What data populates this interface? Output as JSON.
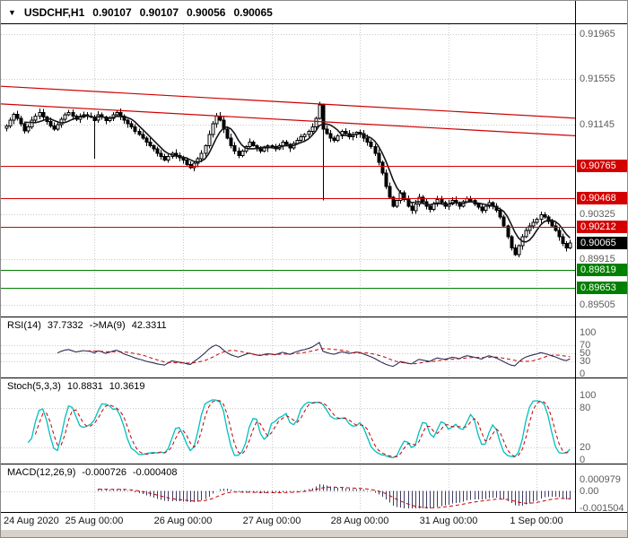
{
  "title": {
    "collapse_icon": "▼",
    "symbol": "USDCHF,H1",
    "open": "0.90107",
    "high": "0.90107",
    "low": "0.90056",
    "close": "0.90065"
  },
  "colors": {
    "resistance": "#d40000",
    "support": "#007f00",
    "current_badge": "#000000",
    "trendline": "#cc0000",
    "grid": "#c9c9c9",
    "candle": "#000000",
    "ma_line": "#14141c",
    "rsi_line": "#2b2b55",
    "rsi_signal": "#c40000",
    "stoch_line": "#00bfbf",
    "stoch_signal": "#c40000",
    "macd_hist": "#3c3c62",
    "macd_signal": "#c40000",
    "axis_text": "#5c5c5c",
    "panel_border": "#000000"
  },
  "chart_data": {
    "type": "candlestick",
    "symbol": "USDCHF",
    "timeframe": "H1",
    "title": "USDCHF,H1 0.90107 0.90107 0.90056 0.90065",
    "price_range": [
      0.89395,
      0.92055
    ],
    "y_axis_ticks": [
      {
        "v": 0.91965,
        "label": "0.91965"
      },
      {
        "v": 0.91555,
        "label": "0.91555"
      },
      {
        "v": 0.91145,
        "label": "0.91145"
      },
      {
        "v": 0.90325,
        "label": "0.90325"
      },
      {
        "v": 0.89915,
        "label": "0.89915"
      },
      {
        "v": 0.89505,
        "label": "0.89505"
      }
    ],
    "levels": {
      "resistance": [
        {
          "v": 0.90765,
          "label": "0.90765"
        },
        {
          "v": 0.90468,
          "label": "0.90468"
        },
        {
          "v": 0.90212,
          "label": "0.90212"
        }
      ],
      "support": [
        {
          "v": 0.89819,
          "label": "0.89819"
        },
        {
          "v": 0.89653,
          "label": "0.89653"
        }
      ],
      "current": {
        "v": 0.90065,
        "label": "0.90065"
      }
    },
    "trendlines": [
      {
        "p1": [
          0,
          0.9149
        ],
        "p2": [
          1,
          0.912
        ]
      },
      {
        "p1": [
          0,
          0.9133
        ],
        "p2": [
          1,
          0.9104
        ]
      }
    ],
    "candles": {
      "first_open": 0.9111,
      "closes": [
        0.9113,
        0.9118,
        0.91235,
        0.912,
        0.9115,
        0.91085,
        0.9112,
        0.9118,
        0.9122,
        0.9125,
        0.9121,
        0.9117,
        0.9113,
        0.911,
        0.9114,
        0.9119,
        0.9123,
        0.9125,
        0.9122,
        0.9119,
        0.9121,
        0.9123,
        0.9122,
        0.9121,
        0.9118,
        0.9123,
        0.9121,
        0.9118,
        0.912,
        0.9123,
        0.9125,
        0.9122,
        0.9118,
        0.9115,
        0.9112,
        0.9108,
        0.9105,
        0.9102,
        0.9098,
        0.9095,
        0.9092,
        0.9088,
        0.9085,
        0.9082,
        0.9085,
        0.9088,
        0.9086,
        0.9084,
        0.9082,
        0.9078,
        0.9075,
        0.9079,
        0.9083,
        0.9088,
        0.9095,
        0.9105,
        0.9115,
        0.9122,
        0.9118,
        0.911,
        0.9102,
        0.9095,
        0.909,
        0.9086,
        0.909,
        0.9094,
        0.9098,
        0.9095,
        0.9092,
        0.909,
        0.9093,
        0.9095,
        0.9094,
        0.9092,
        0.9095,
        0.9098,
        0.9096,
        0.9093,
        0.9097,
        0.91,
        0.9103,
        0.9105,
        0.9108,
        0.9112,
        0.912,
        0.9132,
        0.911,
        0.9106,
        0.9102,
        0.91,
        0.9104,
        0.9108,
        0.9106,
        0.9103,
        0.9105,
        0.9107,
        0.9106,
        0.9102,
        0.9098,
        0.9094,
        0.9088,
        0.908,
        0.907,
        0.9058,
        0.9048,
        0.904,
        0.9045,
        0.9052,
        0.9046,
        0.904,
        0.9036,
        0.9042,
        0.9048,
        0.9044,
        0.904,
        0.9037,
        0.9042,
        0.9046,
        0.9043,
        0.904,
        0.9042,
        0.9045,
        0.9043,
        0.904,
        0.9044,
        0.9047,
        0.9045,
        0.9042,
        0.9039,
        0.9036,
        0.904,
        0.9043,
        0.904,
        0.9036,
        0.903,
        0.9022,
        0.9012,
        0.9002,
        0.8996,
        0.9004,
        0.9012,
        0.9018,
        0.9022,
        0.9025,
        0.9028,
        0.9032,
        0.903,
        0.9026,
        0.9022,
        0.9018,
        0.9012,
        0.9006,
        0.9002,
        0.90065
      ],
      "wick_overrides": {
        "24": {
          "low": 0.9083
        },
        "85": {
          "high": 0.9135
        },
        "86": {
          "low": 0.9045
        }
      }
    },
    "x_axis": {
      "labels": [
        "24 Aug 2020",
        "25 Aug 00:00",
        "26 Aug 00:00",
        "27 Aug 00:00",
        "28 Aug 00:00",
        "31 Aug 00:00",
        "1 Sep 00:00"
      ],
      "candle_indices": [
        0,
        24,
        48,
        72,
        96,
        120,
        144
      ]
    },
    "indicators": {
      "rsi": {
        "name": "RSI(14)",
        "value": "37.7332",
        "ma_name": "->MA(9)",
        "ma_value": "42.3311",
        "period": 14,
        "ma_period": 9,
        "range": [
          0,
          100
        ],
        "ticks": [
          {
            "v": 100,
            "label": "100"
          },
          {
            "v": 70,
            "label": "70"
          },
          {
            "v": 50,
            "label": "50"
          },
          {
            "v": 30,
            "label": "30"
          },
          {
            "v": 0,
            "label": "0"
          }
        ],
        "grid_levels": [
          70,
          50,
          30
        ]
      },
      "stoch": {
        "name": "Stoch(5,3,3)",
        "value": "10.8831",
        "signal_value": "10.3619",
        "k_period": 5,
        "slowing": 3,
        "d_period": 3,
        "range": [
          0,
          100
        ],
        "ticks": [
          {
            "v": 100,
            "label": "100"
          },
          {
            "v": 80,
            "label": "80"
          },
          {
            "v": 20,
            "label": "20"
          },
          {
            "v": 0,
            "label": "0"
          }
        ],
        "grid_levels": [
          80,
          20
        ]
      },
      "macd": {
        "name": "MACD(12,26,9)",
        "value": "-0.000726",
        "signal_value": "-0.000408",
        "fast": 12,
        "slow": 26,
        "signal": 9,
        "range": [
          -0.001504,
          0.000979
        ],
        "ticks": [
          {
            "v": 0.000979,
            "label": "0.000979"
          },
          {
            "v": 0,
            "label": "0.00"
          },
          {
            "v": -0.001504,
            "label": "-0.001504"
          }
        ],
        "grid_levels": [
          0
        ]
      }
    }
  }
}
